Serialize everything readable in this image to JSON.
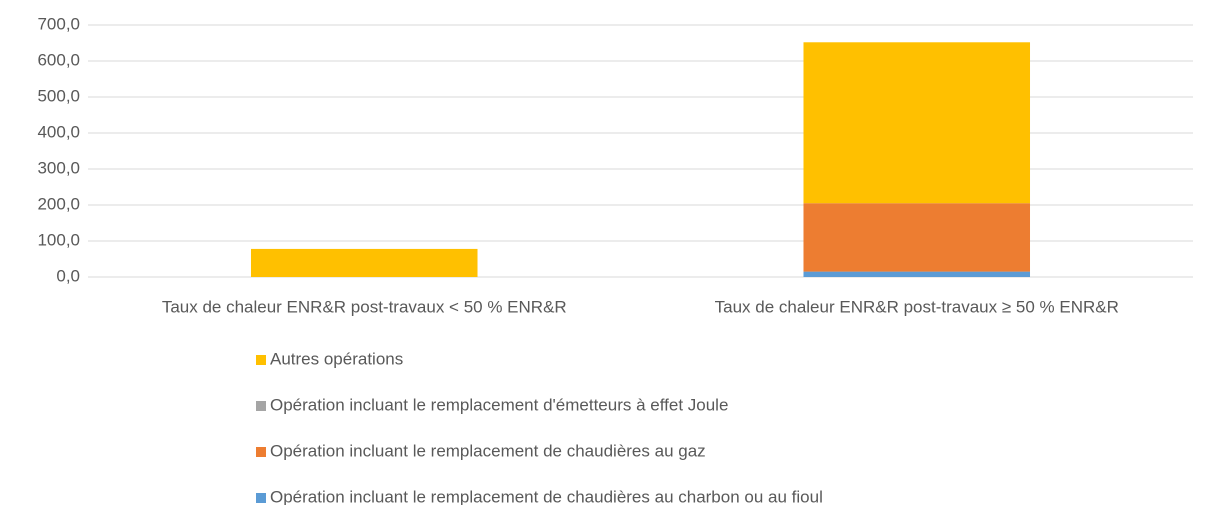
{
  "chart_data": {
    "type": "stacked-bar",
    "categories": [
      "Taux de chaleur ENR&R post-travaux < 50 % ENR&R",
      "Taux de chaleur ENR&R post-travaux ≥ 50 % ENR&R"
    ],
    "series": [
      {
        "name": "Opération incluant le remplacement de chaudières au charbon ou au fioul",
        "color": "#5b9bd5",
        "values": [
          0,
          15
        ]
      },
      {
        "name": "Opération incluant le remplacement de chaudières au gaz",
        "color": "#ed7d31",
        "values": [
          0,
          190
        ]
      },
      {
        "name": "Opération incluant le remplacement d'émetteurs à effet Joule",
        "color": "#a5a5a5",
        "values": [
          0,
          0
        ]
      },
      {
        "name": "Autres opérations",
        "color": "#ffc000",
        "values": [
          78,
          447
        ]
      }
    ],
    "ylim": [
      0,
      700
    ],
    "yticks": [
      {
        "value": 0,
        "label": "0,0"
      },
      {
        "value": 100,
        "label": "100,0"
      },
      {
        "value": 200,
        "label": "200,0"
      },
      {
        "value": 300,
        "label": "300,0"
      },
      {
        "value": 400,
        "label": "400,0"
      },
      {
        "value": 500,
        "label": "500,0"
      },
      {
        "value": 600,
        "label": "600,0"
      },
      {
        "value": 700,
        "label": "700,0"
      }
    ],
    "grid": true
  }
}
